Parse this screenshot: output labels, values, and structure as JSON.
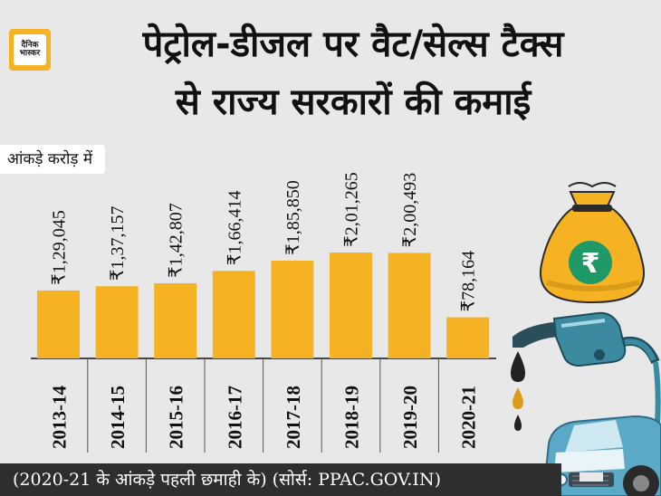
{
  "header": {
    "logo_line1": "दैनिक",
    "logo_line2": "भास्कर",
    "title_line1": "पेट्रोल-डीजल पर वैट/सेल्स टैक्स",
    "title_line2": "से राज्य सरकारों की कमाई"
  },
  "unit_label": "आंकड़े करोड़ में",
  "footer": {
    "note": "(2020-21 के आंकड़े पहली छमाही के) (सोर्स: PPAC.GOV.IN)"
  },
  "colors": {
    "bar": "#f5b324",
    "background": "#e8e8e8",
    "footer_bg": "#2e2e2e"
  },
  "icons": [
    "money-bag-icon",
    "rupee-icon",
    "fuel-nozzle-icon",
    "oil-drop-icon",
    "car-icon"
  ],
  "chart_data": {
    "type": "bar",
    "categories": [
      "2013-14",
      "2014-15",
      "2015-16",
      "2016-17",
      "2017-18",
      "2018-19",
      "2019-20",
      "2020-21"
    ],
    "values": [
      129045,
      137157,
      142807,
      166414,
      185850,
      201265,
      200493,
      78164
    ],
    "value_labels": [
      "₹1,29,045",
      "₹1,37,157",
      "₹1,42,807",
      "₹1,66,414",
      "₹1,85,850",
      "₹2,01,265",
      "₹2,00,493",
      "₹78,164"
    ],
    "title": "पेट्रोल-डीजल पर वैट/सेल्स टैक्स से राज्य सरकारों की कमाई",
    "xlabel": "",
    "ylabel": "आंकड़े करोड़ में",
    "ylim": [
      0,
      320000
    ],
    "grid": false,
    "legend": "none"
  }
}
